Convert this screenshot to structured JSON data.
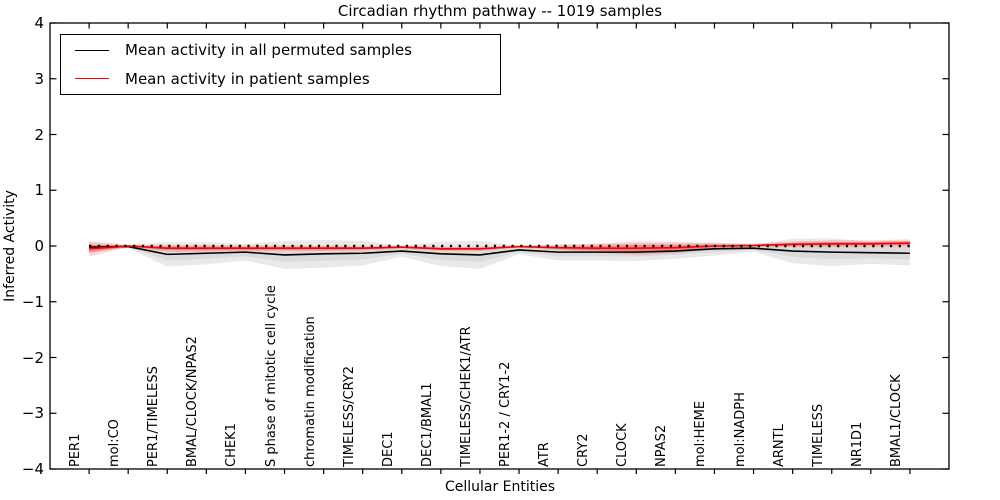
{
  "chart_data": {
    "type": "line",
    "title": "Circadian rhythm pathway -- 1019 samples",
    "xlabel": "Cellular Entities",
    "ylabel": "Inferred Activity",
    "ylim": [
      -4,
      4
    ],
    "yticks": [
      4,
      3,
      2,
      1,
      0,
      -1,
      -2,
      -3,
      -4
    ],
    "ytick_labels": [
      "4",
      "3",
      "2",
      "1",
      "0",
      "−1",
      "−2",
      "−3",
      "−4"
    ],
    "grid": false,
    "legend_position": "upper left",
    "categories": [
      "PER1",
      "mol:CO",
      "PER1/TIMELESS",
      "BMAL/CLOCK/NPAS2",
      "CHEK1",
      "S phase of mitotic cell cycle",
      "chromatin modification",
      "TIMELESS/CRY2",
      "DEC1",
      "DEC1/BMAL1",
      "TIMELESS/CHEK1/ATR",
      "PER1-2 / CRY1-2",
      "ATR",
      "CRY2",
      "CLOCK",
      "NPAS2",
      "mol:HEME",
      "mol:NADPH",
      "ARNTL",
      "TIMELESS",
      "NR1D1",
      "BMAL1/CLOCK"
    ],
    "series": [
      {
        "name": "Mean activity in all permuted samples",
        "color": "#000000",
        "band_color_outer": "rgba(120,120,120,0.16)",
        "band_color_inner": "rgba(120,120,120,0.12)",
        "mean": [
          -0.02,
          -0.01,
          -0.15,
          -0.13,
          -0.11,
          -0.16,
          -0.14,
          -0.13,
          -0.09,
          -0.14,
          -0.16,
          -0.07,
          -0.11,
          -0.11,
          -0.11,
          -0.09,
          -0.05,
          -0.04,
          -0.09,
          -0.11,
          -0.12,
          -0.13
        ],
        "std": [
          0.08,
          0.03,
          0.22,
          0.2,
          0.15,
          0.25,
          0.25,
          0.22,
          0.1,
          0.22,
          0.25,
          0.08,
          0.15,
          0.15,
          0.16,
          0.14,
          0.12,
          0.06,
          0.22,
          0.25,
          0.2,
          0.22
        ]
      },
      {
        "name": "Mean activity in patient samples",
        "color": "#ff0000",
        "band_color_outer": "rgba(255,0,0,0.16)",
        "band_color_inner": "rgba(255,0,0,0.30)",
        "mean": [
          -0.05,
          0.0,
          -0.04,
          -0.04,
          -0.04,
          -0.04,
          -0.04,
          -0.04,
          -0.02,
          -0.05,
          -0.05,
          -0.01,
          -0.03,
          -0.04,
          -0.04,
          -0.03,
          0.0,
          0.01,
          0.03,
          0.04,
          0.04,
          0.05
        ],
        "std": [
          0.14,
          0.02,
          0.06,
          0.06,
          0.05,
          0.05,
          0.05,
          0.04,
          0.03,
          0.04,
          0.04,
          0.02,
          0.04,
          0.08,
          0.12,
          0.1,
          0.05,
          0.03,
          0.05,
          0.06,
          0.06,
          0.07
        ]
      }
    ],
    "reference_line": {
      "y": 0,
      "style": "dotted",
      "color": "#000000"
    }
  }
}
